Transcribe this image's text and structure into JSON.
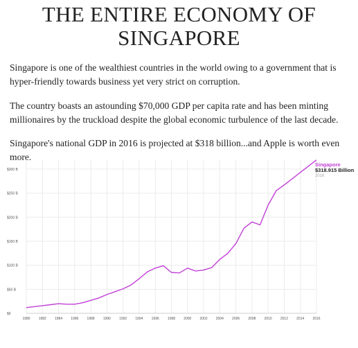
{
  "title": "THE ENTIRE ECONOMY OF SINGAPORE",
  "paragraphs": [
    "Singapore is one of the wealthiest countries in the world owing to a government that is hyper-friendly towards business yet very strict on corruption.",
    "The country boasts an astounding $70,000 GDP per capita rate and has been minting millionaires by the truckload despite the global economic turbulence of the last decade.",
    "Singapore's national GDP in 2016 is projected at $318 billion...and Apple is worth even more."
  ],
  "chart_data": {
    "type": "line",
    "title": "",
    "xlabel": "",
    "ylabel": "",
    "xlim": [
      1980,
      2016
    ],
    "ylim": [
      0,
      320
    ],
    "grid": true,
    "x_ticks": [
      1980,
      1982,
      1984,
      1986,
      1988,
      1990,
      1992,
      1994,
      1996,
      1998,
      2000,
      2002,
      2004,
      2006,
      2008,
      2010,
      2012,
      2014,
      2016
    ],
    "y_ticks": [
      {
        "value": 0,
        "label": "$0"
      },
      {
        "value": 50,
        "label": "$50 B"
      },
      {
        "value": 100,
        "label": "$100 B"
      },
      {
        "value": 150,
        "label": "$150 B"
      },
      {
        "value": 200,
        "label": "$200 B"
      },
      {
        "value": 250,
        "label": "$250 B"
      },
      {
        "value": 300,
        "label": "$300 B"
      }
    ],
    "series": [
      {
        "name": "Singapore",
        "color": "#c13fd6",
        "x": [
          1980,
          1981,
          1982,
          1983,
          1984,
          1985,
          1986,
          1987,
          1988,
          1989,
          1990,
          1991,
          1992,
          1993,
          1994,
          1995,
          1996,
          1997,
          1998,
          1999,
          2000,
          2001,
          2002,
          2003,
          2004,
          2005,
          2006,
          2007,
          2008,
          2009,
          2010,
          2011,
          2012,
          2013,
          2014,
          2015,
          2016
        ],
        "values": [
          12,
          14,
          16,
          18,
          20,
          19,
          19,
          22,
          27,
          32,
          39,
          45,
          51,
          59,
          72,
          86,
          94,
          99,
          85,
          84,
          94,
          88,
          90,
          95,
          112,
          125,
          145,
          177,
          190,
          184,
          225,
          255,
          267,
          280,
          293,
          306,
          318.9
        ]
      }
    ],
    "end_label": {
      "name": "Singapore",
      "value": "$318.915 Billion",
      "year": "2016"
    }
  }
}
